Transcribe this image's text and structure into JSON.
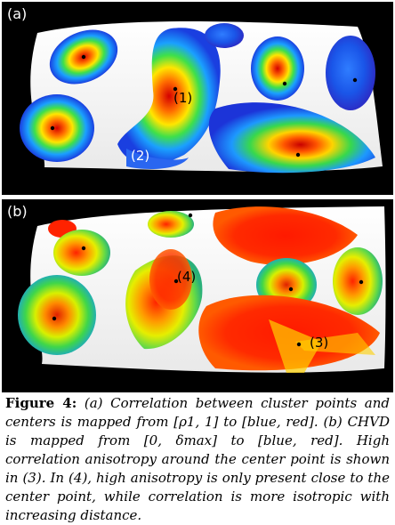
{
  "panel_a": {
    "label": "(a)",
    "annotations": {
      "one": "(1)",
      "two": "(2)"
    }
  },
  "panel_b": {
    "label": "(b)",
    "annotations": {
      "three": "(3)",
      "four": "(4)"
    }
  },
  "caption": {
    "figure_label": "Figure 4:",
    "text": "(a) Correlation between cluster points and centers is mapped from [ρ1, 1] to [blue, red]. (b) CHVD is mapped from [0, δmax] to [blue, red]. High correlation anisotropy around the center point is shown in (3). In (4), high anisotropy is only present close to the center point, while correlation is more isotropic with increasing distance."
  }
}
